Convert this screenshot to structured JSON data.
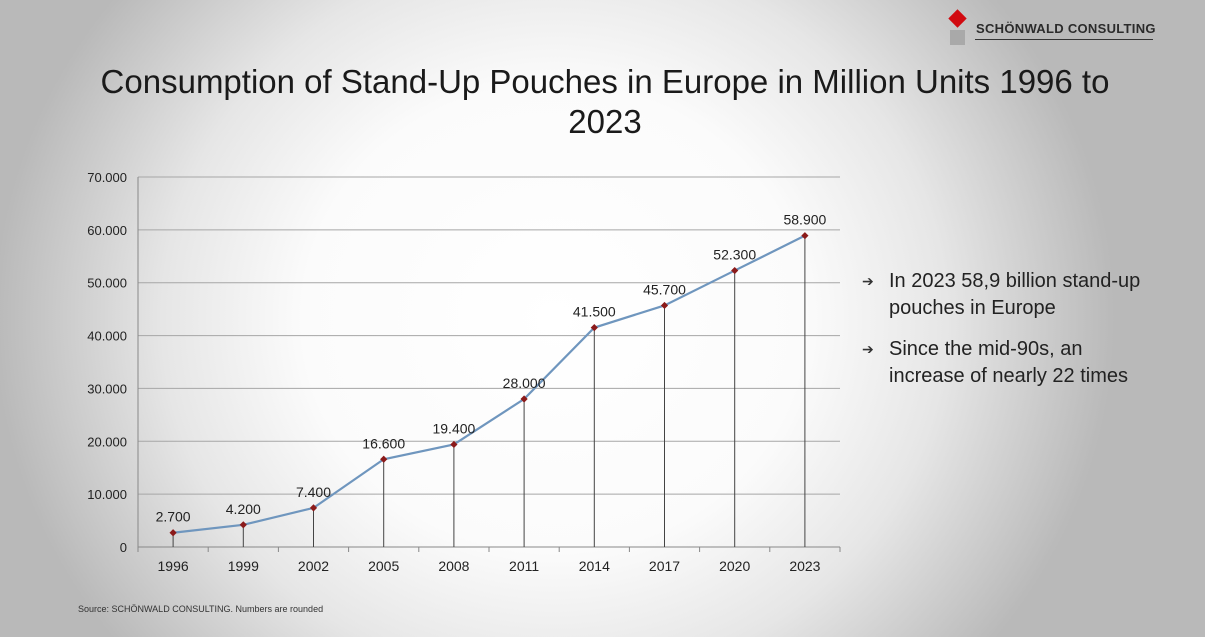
{
  "logo": {
    "text": "SCHÖNWALD  CONSULTING"
  },
  "title": "Consumption of Stand-Up Pouches in Europe in Million Units 1996 to 2023",
  "notes": [
    "In 2023 58,9 billion stand-up pouches in Europe",
    "Since the mid-90s, an increase of nearly 22 times"
  ],
  "source": "Source: SCHÖNWALD CONSULTING. Numbers are rounded",
  "colors": {
    "line": "#6f96be",
    "marker": "#8b1a1a",
    "logo_red": "#d10a10",
    "logo_grey": "#a9a9a9"
  },
  "chart_data": {
    "type": "line",
    "title": "Consumption of Stand-Up Pouches in Europe in Million Units 1996 to 2023",
    "categories": [
      "1996",
      "1999",
      "2002",
      "2005",
      "2008",
      "2011",
      "2014",
      "2017",
      "2020",
      "2023"
    ],
    "values": [
      2700,
      4200,
      7400,
      16600,
      19400,
      28000,
      41500,
      45700,
      52300,
      58900
    ],
    "data_labels": [
      "2.700",
      "4.200",
      "7.400",
      "16.600",
      "19.400",
      "28.000",
      "41.500",
      "45.700",
      "52.300",
      "58.900"
    ],
    "ylim": [
      0,
      70000
    ],
    "yticks": [
      0,
      10000,
      20000,
      30000,
      40000,
      50000,
      60000,
      70000
    ],
    "ytick_labels": [
      "0",
      "10.000",
      "20.000",
      "30.000",
      "40.000",
      "50.000",
      "60.000",
      "70.000"
    ],
    "grid": true,
    "drop_lines": true,
    "xlabel": "",
    "ylabel": ""
  }
}
